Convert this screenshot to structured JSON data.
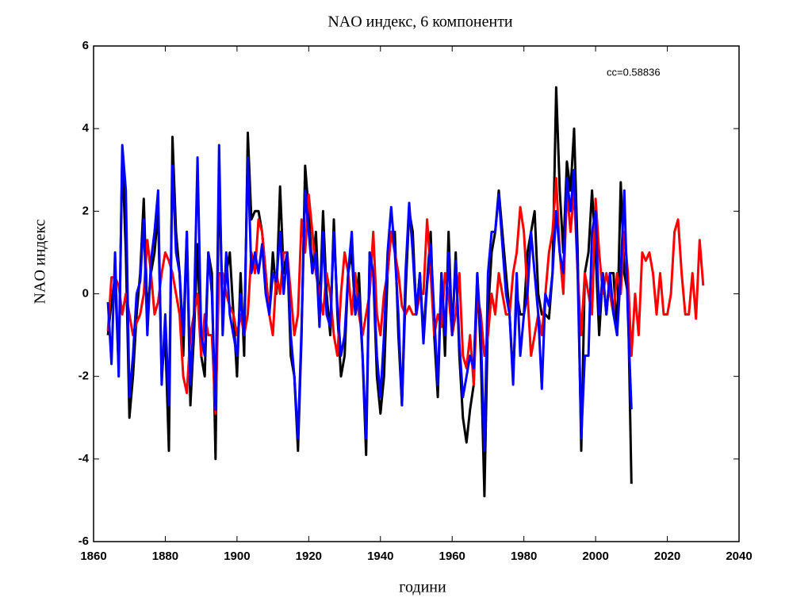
{
  "chart_data": {
    "type": "line",
    "title": "NAO индекс, 6 компоненти",
    "xlabel": "години",
    "ylabel": "NAO индекс",
    "annotation": "cc=0.58836",
    "x": [
      1864,
      1865,
      1866,
      1867,
      1868,
      1869,
      1870,
      1871,
      1872,
      1873,
      1874,
      1875,
      1876,
      1877,
      1878,
      1879,
      1880,
      1881,
      1882,
      1883,
      1884,
      1885,
      1886,
      1887,
      1888,
      1889,
      1890,
      1891,
      1892,
      1893,
      1894,
      1895,
      1896,
      1897,
      1898,
      1899,
      1900,
      1901,
      1902,
      1903,
      1904,
      1905,
      1906,
      1907,
      1908,
      1909,
      1910,
      1911,
      1912,
      1913,
      1914,
      1915,
      1916,
      1917,
      1918,
      1919,
      1920,
      1921,
      1922,
      1923,
      1924,
      1925,
      1926,
      1927,
      1928,
      1929,
      1930,
      1931,
      1932,
      1933,
      1934,
      1935,
      1936,
      1937,
      1938,
      1939,
      1940,
      1941,
      1942,
      1943,
      1944,
      1945,
      1946,
      1947,
      1948,
      1949,
      1950,
      1951,
      1952,
      1953,
      1954,
      1955,
      1956,
      1957,
      1958,
      1959,
      1960,
      1961,
      1962,
      1963,
      1964,
      1965,
      1966,
      1967,
      1968,
      1969,
      1970,
      1971,
      1972,
      1973,
      1974,
      1975,
      1976,
      1977,
      1978,
      1979,
      1980,
      1981,
      1982,
      1983,
      1984,
      1985,
      1986,
      1987,
      1988,
      1989,
      1990,
      1991,
      1992,
      1993,
      1994,
      1995,
      1996,
      1997,
      1998,
      1999,
      2000,
      2001,
      2002,
      2003,
      2004,
      2005,
      2006,
      2007,
      2008,
      2009,
      2010,
      2011,
      2012,
      2013,
      2014,
      2015,
      2016,
      2017,
      2018,
      2019,
      2020,
      2021,
      2022,
      2023,
      2024,
      2025,
      2026,
      2027,
      2028,
      2029,
      2030
    ],
    "series": [
      {
        "color": "#000000",
        "values": [
          -1.0,
          -0.2,
          0.4,
          -1.8,
          3.4,
          1.0,
          -3.0,
          -2.0,
          -0.5,
          0.5,
          2.3,
          -0.5,
          0.5,
          1.0,
          2.0,
          -2.0,
          -1.0,
          -3.8,
          3.8,
          1.5,
          0.5,
          -1.5,
          1.5,
          -2.7,
          -1.0,
          1.2,
          -1.5,
          -2.0,
          1.0,
          0.5,
          -4.0,
          3.0,
          -0.5,
          0.5,
          1.0,
          -0.5,
          -2.0,
          0.5,
          -1.5,
          3.9,
          1.8,
          2.0,
          2.0,
          1.5,
          0.5,
          -0.5,
          1.0,
          0.0,
          2.6,
          0.5,
          1.0,
          -1.5,
          -2.0,
          -3.8,
          -1.0,
          3.1,
          2.0,
          0.5,
          1.5,
          -0.5,
          2.0,
          0.0,
          -1.0,
          1.8,
          -0.5,
          -2.0,
          -1.5,
          0.5,
          1.0,
          -0.5,
          0.5,
          -1.5,
          -3.9,
          1.0,
          0.5,
          -2.0,
          -2.9,
          -2.0,
          0.5,
          1.5,
          1.5,
          -1.0,
          -2.7,
          0.0,
          2.0,
          1.5,
          -0.5,
          0.5,
          -1.0,
          0.3,
          1.5,
          -1.0,
          -2.5,
          0.5,
          -1.5,
          1.5,
          -1.0,
          1.0,
          -1.5,
          -3.0,
          -3.6,
          -2.8,
          -2.2,
          0.5,
          -1.5,
          -4.9,
          -0.5,
          1.0,
          1.5,
          2.5,
          1.5,
          0.5,
          -0.5,
          -2.0,
          0.0,
          -0.5,
          -0.5,
          1.0,
          1.5,
          2.0,
          0.0,
          -0.5,
          -0.5,
          -0.6,
          0.5,
          5.0,
          2.5,
          1.0,
          3.2,
          2.5,
          4.0,
          1.0,
          -3.8,
          0.5,
          1.0,
          2.5,
          1.0,
          -1.0,
          0.5,
          -0.5,
          0.5,
          0.5,
          -1.0,
          2.7,
          0.5,
          0.0,
          -4.6,
          null,
          null,
          null,
          null,
          null,
          null,
          null,
          null,
          null,
          null,
          null,
          null,
          null,
          null,
          null,
          null,
          null,
          null,
          null,
          null
        ]
      },
      {
        "color": "#ff0000",
        "values": [
          -0.9,
          0.4,
          0.4,
          0.2,
          -0.5,
          0.0,
          -0.5,
          -1.0,
          -0.7,
          -0.5,
          0.0,
          1.3,
          0.5,
          -0.5,
          -0.2,
          0.5,
          1.0,
          0.8,
          0.5,
          0.0,
          -0.5,
          -2.0,
          -2.4,
          -1.0,
          -0.5,
          0.0,
          -1.5,
          -0.5,
          -1.0,
          -1.0,
          -2.9,
          0.5,
          0.5,
          0.0,
          -0.3,
          -0.5,
          -1.0,
          -0.5,
          -1.0,
          -0.5,
          1.0,
          0.5,
          1.8,
          1.5,
          0.5,
          -0.5,
          -1.0,
          0.5,
          0.0,
          1.0,
          1.0,
          0.0,
          -1.0,
          -0.5,
          1.8,
          1.0,
          2.4,
          1.5,
          0.5,
          0.0,
          -0.5,
          0.5,
          0.0,
          -1.0,
          -1.5,
          0.0,
          1.0,
          0.5,
          -0.5,
          0.5,
          -0.5,
          -1.0,
          -0.5,
          0.0,
          1.5,
          -0.5,
          -1.0,
          0.0,
          0.5,
          1.5,
          1.0,
          0.5,
          -0.3,
          -0.5,
          -0.3,
          -0.5,
          -0.5,
          0.0,
          0.0,
          1.8,
          0.5,
          -1.0,
          -0.5,
          -0.8,
          0.5,
          0.0,
          -1.0,
          -0.5,
          0.5,
          -1.5,
          -1.8,
          -1.0,
          -2.2,
          0.0,
          -0.5,
          -1.5,
          -1.0,
          0.0,
          -0.5,
          0.5,
          0.0,
          -0.5,
          -0.5,
          0.5,
          1.0,
          2.1,
          1.5,
          0.0,
          -1.5,
          -1.0,
          -0.5,
          -1.0,
          0.0,
          1.0,
          1.5,
          2.8,
          1.0,
          0.0,
          2.5,
          1.5,
          2.5,
          0.5,
          -1.0,
          0.5,
          0.0,
          -0.5,
          2.3,
          1.0,
          0.0,
          0.5,
          0.0,
          -0.5,
          0.5,
          0.0,
          1.5,
          0.5,
          -1.5,
          0.0,
          -1.0,
          1.0,
          0.8,
          1.0,
          0.5,
          -0.5,
          0.5,
          -0.5,
          -0.5,
          0.0,
          1.5,
          1.8,
          0.5,
          -0.5,
          -0.5,
          0.5,
          -0.6,
          1.3,
          0.2
        ]
      },
      {
        "color": "#0000ff",
        "values": [
          -0.2,
          -1.7,
          1.0,
          -2.0,
          3.6,
          2.5,
          -2.5,
          -1.5,
          0.0,
          0.3,
          1.8,
          -1.0,
          0.8,
          1.5,
          2.5,
          -2.2,
          -0.5,
          -2.7,
          3.1,
          1.0,
          0.5,
          -1.0,
          1.5,
          -2.2,
          -0.5,
          3.3,
          -1.0,
          -1.5,
          1.0,
          0.0,
          -2.8,
          3.6,
          -1.0,
          1.0,
          -0.5,
          -1.0,
          -1.5,
          0.0,
          -1.0,
          3.3,
          0.5,
          1.0,
          0.5,
          1.2,
          0.0,
          -0.5,
          0.5,
          0.3,
          1.5,
          0.0,
          1.0,
          -1.0,
          -2.0,
          -3.5,
          -0.8,
          2.5,
          1.5,
          0.5,
          1.0,
          -0.8,
          1.5,
          -0.5,
          -0.8,
          1.5,
          -0.3,
          -1.5,
          -1.0,
          0.5,
          1.5,
          -0.5,
          0.0,
          -1.5,
          -3.5,
          1.0,
          0.5,
          -1.5,
          -2.5,
          -1.0,
          1.0,
          2.1,
          1.0,
          -0.5,
          -2.7,
          0.5,
          2.2,
          1.0,
          -0.5,
          0.5,
          -1.2,
          0.2,
          1.2,
          -0.5,
          -2.2,
          0.5,
          -1.0,
          1.0,
          -1.0,
          0.8,
          -1.2,
          -2.5,
          -2.0,
          -1.5,
          -1.8,
          0.5,
          -1.0,
          -3.8,
          0.5,
          1.5,
          1.5,
          2.4,
          1.2,
          0.0,
          -0.5,
          -2.2,
          0.5,
          -1.5,
          -0.5,
          0.0,
          1.5,
          0.5,
          -0.5,
          -2.3,
          0.0,
          -0.3,
          0.5,
          2.0,
          1.0,
          0.5,
          2.8,
          2.0,
          3.0,
          0.5,
          -3.5,
          -1.5,
          -1.5,
          1.5,
          2.0,
          -0.5,
          0.5,
          -0.5,
          0.5,
          -0.5,
          -1.0,
          0.5,
          2.5,
          -0.5,
          -2.8,
          null,
          null,
          null,
          null,
          null,
          null,
          null,
          null,
          null,
          null,
          null,
          null,
          null,
          null,
          null,
          null,
          null,
          null,
          null,
          null
        ]
      }
    ],
    "xlim": [
      1860,
      2040
    ],
    "xticks": [
      1860,
      1880,
      1900,
      1920,
      1940,
      1960,
      1980,
      2000,
      2020,
      2040
    ],
    "ylim": [
      -6,
      6
    ],
    "yticks": [
      -6,
      -4,
      -2,
      0,
      2,
      4,
      6
    ],
    "grid": false
  }
}
